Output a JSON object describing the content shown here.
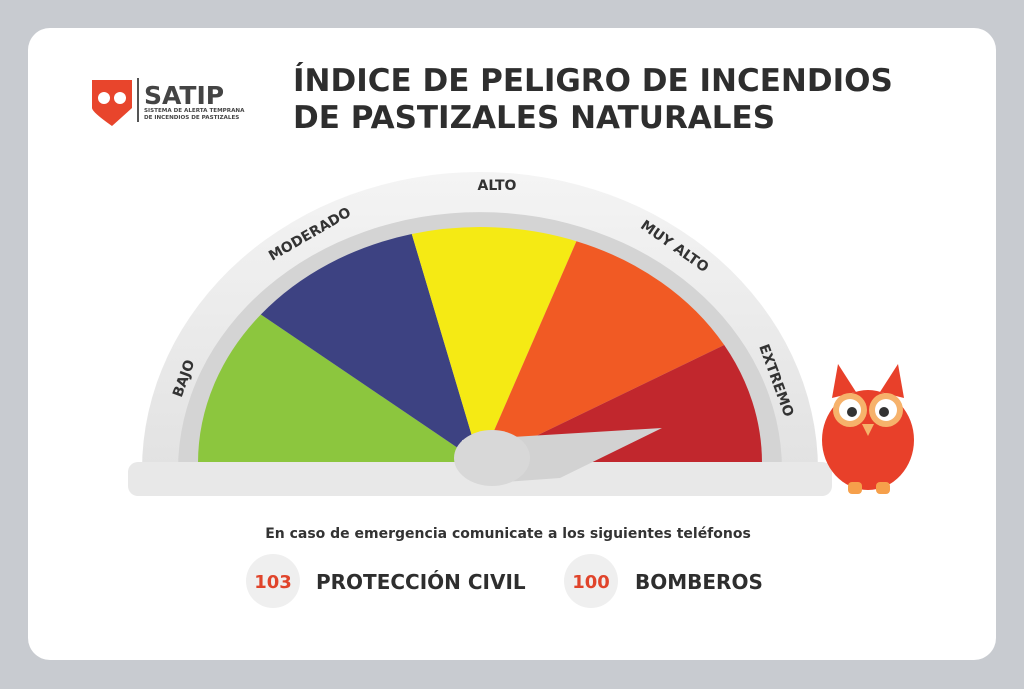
{
  "logo": {
    "name": "SATIP",
    "subtitle": [
      "SISTEMA DE ALERTA TEMPRANA",
      "DE INCENDIOS DE PASTIZALES"
    ]
  },
  "title": [
    "ÍNDICE DE PELIGRO DE INCENDIOS",
    "DE PASTIZALES NATURALES"
  ],
  "gauge": {
    "levels": [
      "BAJO",
      "MODERADO",
      "ALTO",
      "MUY ALTO",
      "EXTREMO"
    ]
  },
  "emergency": {
    "text": "En caso de emergencia comunicate a los siguientes teléfonos",
    "contacts": [
      {
        "number": "103",
        "name": "PROTECCIÓN CIVIL"
      },
      {
        "number": "100",
        "name": "BOMBEROS"
      }
    ]
  }
}
